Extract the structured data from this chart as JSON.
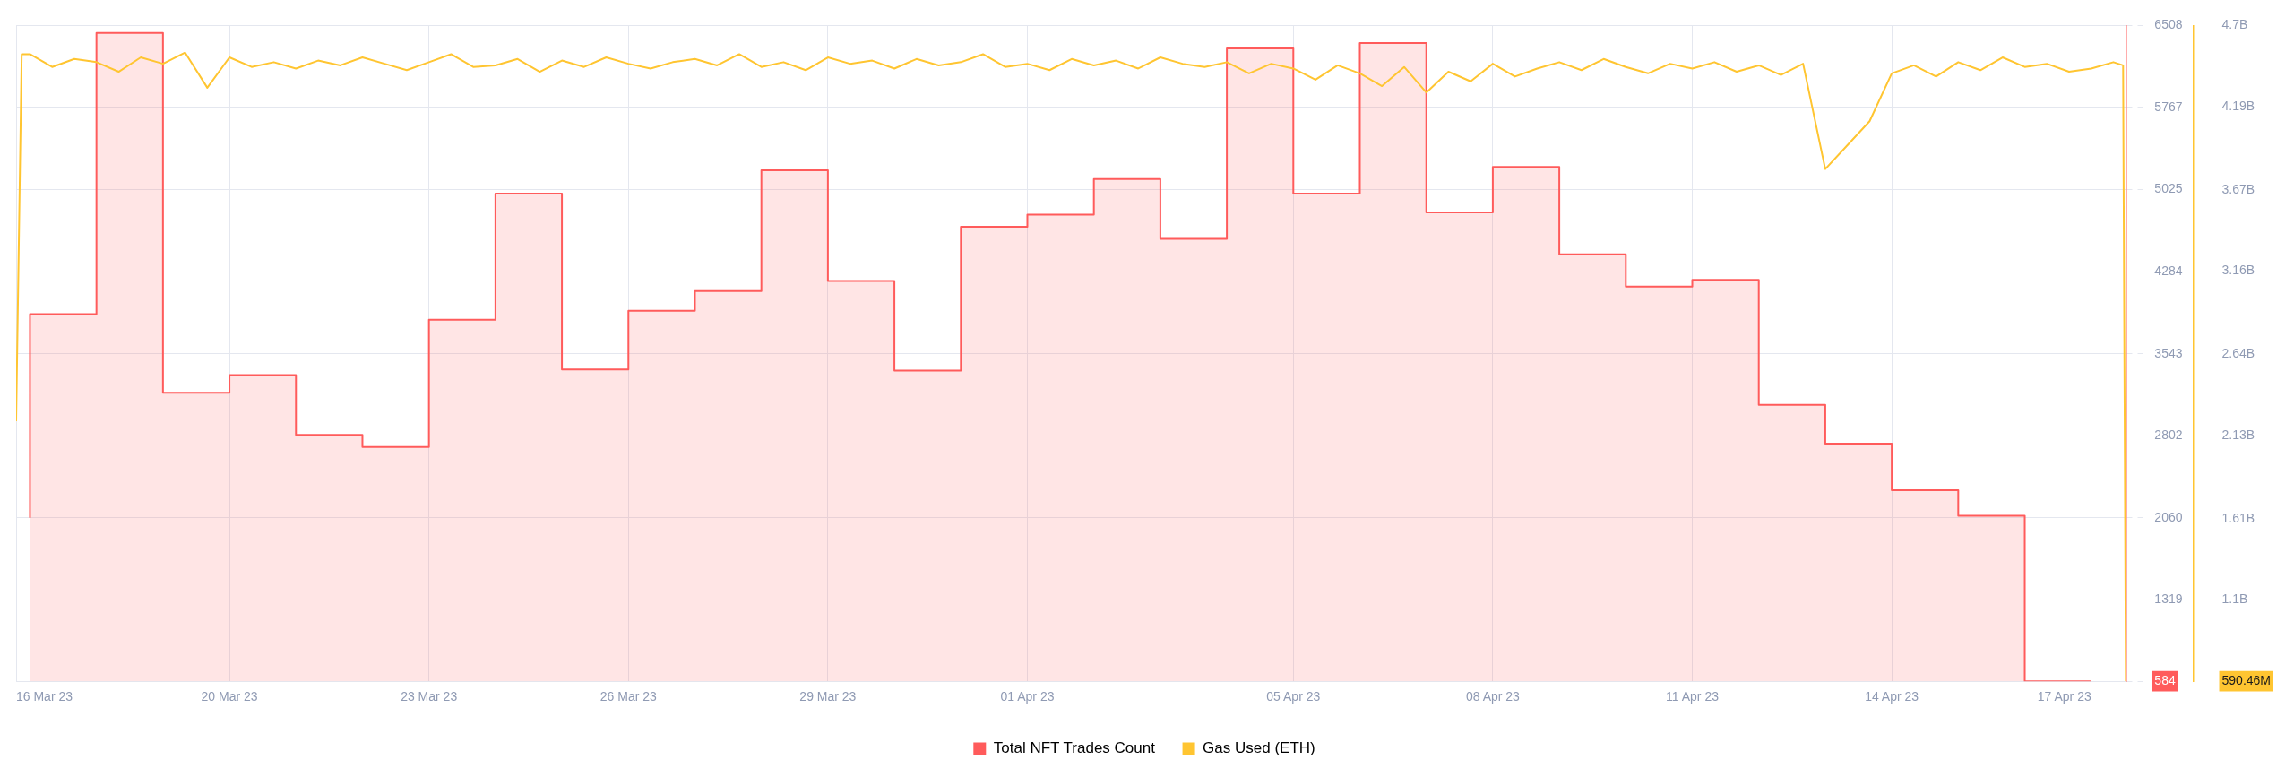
{
  "chart_data": {
    "type": "line",
    "x": [
      "--03-17",
      "--03-18",
      "--03-19",
      "--03-20",
      "--03-21",
      "--03-22",
      "--03-23",
      "--03-24",
      "--03-25",
      "--03-26",
      "--03-27",
      "--03-28",
      "--03-29",
      "--03-30",
      "--03-31",
      "--04-01",
      "--04-02",
      "--04-03",
      "--04-04",
      "--04-05",
      "--04-06",
      "--04-07",
      "--04-08",
      "--04-09",
      "--04-10",
      "--04-11",
      "--04-12",
      "--04-13",
      "--04-14",
      "--04-15",
      "--04-16",
      "--04-17"
    ],
    "series": [
      {
        "name": "Total NFT Trades Count",
        "type": "step",
        "color": "#ff5b5b",
        "values": [
          2060,
          3900,
          6440,
          3190,
          3350,
          2810,
          2700,
          3850,
          4990,
          3400,
          3930,
          4110,
          5200,
          4200,
          3390,
          4690,
          4800,
          5120,
          4580,
          6300,
          4990,
          6350,
          4820,
          5230,
          4440,
          4150,
          4210,
          3080,
          2730,
          2310,
          2080,
          584
        ]
      },
      {
        "name": "Gas Used (ETH)",
        "axis": "y2",
        "color": "#ffc531",
        "x": [
          "--03-16T19:00",
          "--03-16T21:00",
          "--03-17T00:00",
          "--03-17T08:00",
          "--03-17T16:00",
          "--03-18T00:00",
          "--03-18T08:00",
          "--03-18T16:00",
          "--03-19T00:00",
          "--03-19T08:00",
          "--03-19T16:00",
          "--03-20T00:00",
          "--03-20T08:00",
          "--03-20T16:00",
          "--03-21T00:00",
          "--03-21T08:00",
          "--03-21T16:00",
          "--03-22T00:00",
          "--03-22T08:00",
          "--03-22T16:00",
          "--03-23T00:00",
          "--03-23T08:00",
          "--03-23T16:00",
          "--03-24T00:00",
          "--03-24T08:00",
          "--03-24T16:00",
          "--03-25T00:00",
          "--03-25T08:00",
          "--03-25T16:00",
          "--03-26T00:00",
          "--03-26T08:00",
          "--03-26T16:00",
          "--03-27T00:00",
          "--03-27T08:00",
          "--03-27T16:00",
          "--03-28T00:00",
          "--03-28T08:00",
          "--03-28T16:00",
          "--03-29T00:00",
          "--03-29T08:00",
          "--03-29T16:00",
          "--03-30T00:00",
          "--03-30T08:00",
          "--03-30T16:00",
          "--03-31T00:00",
          "--03-31T08:00",
          "--03-31T16:00",
          "--04-01T00:00",
          "--04-01T08:00",
          "--04-01T16:00",
          "--04-02T00:00",
          "--04-02T08:00",
          "--04-02T16:00",
          "--04-03T00:00",
          "--04-03T08:00",
          "--04-03T16:00",
          "--04-04T00:00",
          "--04-04T08:00",
          "--04-04T16:00",
          "--04-05T00:00",
          "--04-05T08:00",
          "--04-05T16:00",
          "--04-06T00:00",
          "--04-06T08:00",
          "--04-06T16:00",
          "--04-07T00:00",
          "--04-07T08:00",
          "--04-07T16:00",
          "--04-08T00:00",
          "--04-08T08:00",
          "--04-08T16:00",
          "--04-09T00:00",
          "--04-09T08:00",
          "--04-09T16:00",
          "--04-10T00:00",
          "--04-10T08:00",
          "--04-10T16:00",
          "--04-11T00:00",
          "--04-11T08:00",
          "--04-11T16:00",
          "--04-12T00:00",
          "--04-12T08:00",
          "--04-12T16:00",
          "--04-13T00:00",
          "--04-13T08:00",
          "--04-13T16:00",
          "--04-14T00:00",
          "--04-14T08:00",
          "--04-14T16:00",
          "--04-15T00:00",
          "--04-15T08:00",
          "--04-15T16:00",
          "--04-16T00:00",
          "--04-16T08:00",
          "--04-16T16:00",
          "--04-17T00:00",
          "--04-17T08:00",
          "--04-17T11:30",
          "--04-17T12:30"
        ],
        "values": [
          2220000000,
          4520000000,
          4520000000,
          4440000000,
          4490000000,
          4470000000,
          4410000000,
          4500000000,
          4460000000,
          4530000000,
          4310000000,
          4500000000,
          4440000000,
          4470000000,
          4430000000,
          4480000000,
          4450000000,
          4500000000,
          4460000000,
          4420000000,
          4470000000,
          4520000000,
          4440000000,
          4450000000,
          4490000000,
          4410000000,
          4480000000,
          4440000000,
          4500000000,
          4460000000,
          4430000000,
          4470000000,
          4490000000,
          4450000000,
          4520000000,
          4440000000,
          4470000000,
          4420000000,
          4500000000,
          4460000000,
          4480000000,
          4430000000,
          4490000000,
          4450000000,
          4470000000,
          4520000000,
          4440000000,
          4460000000,
          4420000000,
          4490000000,
          4450000000,
          4480000000,
          4430000000,
          4500000000,
          4460000000,
          4440000000,
          4470000000,
          4400000000,
          4460000000,
          4430000000,
          4360000000,
          4450000000,
          4400000000,
          4320000000,
          4440000000,
          4280000000,
          4410000000,
          4350000000,
          4460000000,
          4380000000,
          4430000000,
          4470000000,
          4420000000,
          4490000000,
          4440000000,
          4400000000,
          4460000000,
          4430000000,
          4470000000,
          4410000000,
          4450000000,
          4390000000,
          4460000000,
          3800000000,
          3950000000,
          4100000000,
          4400000000,
          4450000000,
          4380000000,
          4470000000,
          4420000000,
          4500000000,
          4440000000,
          4460000000,
          4410000000,
          4430000000,
          4470000000,
          4450000000,
          590460000
        ]
      }
    ],
    "xlim": [
      "--03-16T19:00",
      "--04-17T12:30"
    ],
    "xticks": [
      {
        "value": "--03-16T19:00",
        "label": "16 Mar 23"
      },
      {
        "value": "--03-20",
        "label": "20 Mar 23"
      },
      {
        "value": "--03-23",
        "label": "23 Mar 23"
      },
      {
        "value": "--03-26",
        "label": "26 Mar 23"
      },
      {
        "value": "--03-29",
        "label": "29 Mar 23"
      },
      {
        "value": "--04-01",
        "label": "01 Apr 23"
      },
      {
        "value": "--04-05",
        "label": "05 Apr 23"
      },
      {
        "value": "--04-08",
        "label": "08 Apr 23"
      },
      {
        "value": "--04-11",
        "label": "11 Apr 23"
      },
      {
        "value": "--04-14",
        "label": "14 Apr 23"
      },
      {
        "value": "--04-17",
        "label": "17 Apr 23"
      }
    ],
    "ylim": [
      584,
      6508
    ],
    "yticks": [
      584,
      1319,
      2060,
      2802,
      3543,
      4284,
      5025,
      5767,
      6508
    ],
    "y2lim": [
      590460000,
      4700000000
    ],
    "y2ticks": [
      {
        "value": 590460000,
        "label": "590.46M"
      },
      {
        "value": 1100000000,
        "label": "1.1B"
      },
      {
        "value": 1610000000,
        "label": "1.61B"
      },
      {
        "value": 2130000000,
        "label": "2.13B"
      },
      {
        "value": 2640000000,
        "label": "2.64B"
      },
      {
        "value": 3160000000,
        "label": "3.16B"
      },
      {
        "value": 3670000000,
        "label": "3.67B"
      },
      {
        "value": 4190000000,
        "label": "4.19B"
      },
      {
        "value": 4700000000,
        "label": "4.7B"
      }
    ],
    "grid": true,
    "legend": "bottom"
  }
}
